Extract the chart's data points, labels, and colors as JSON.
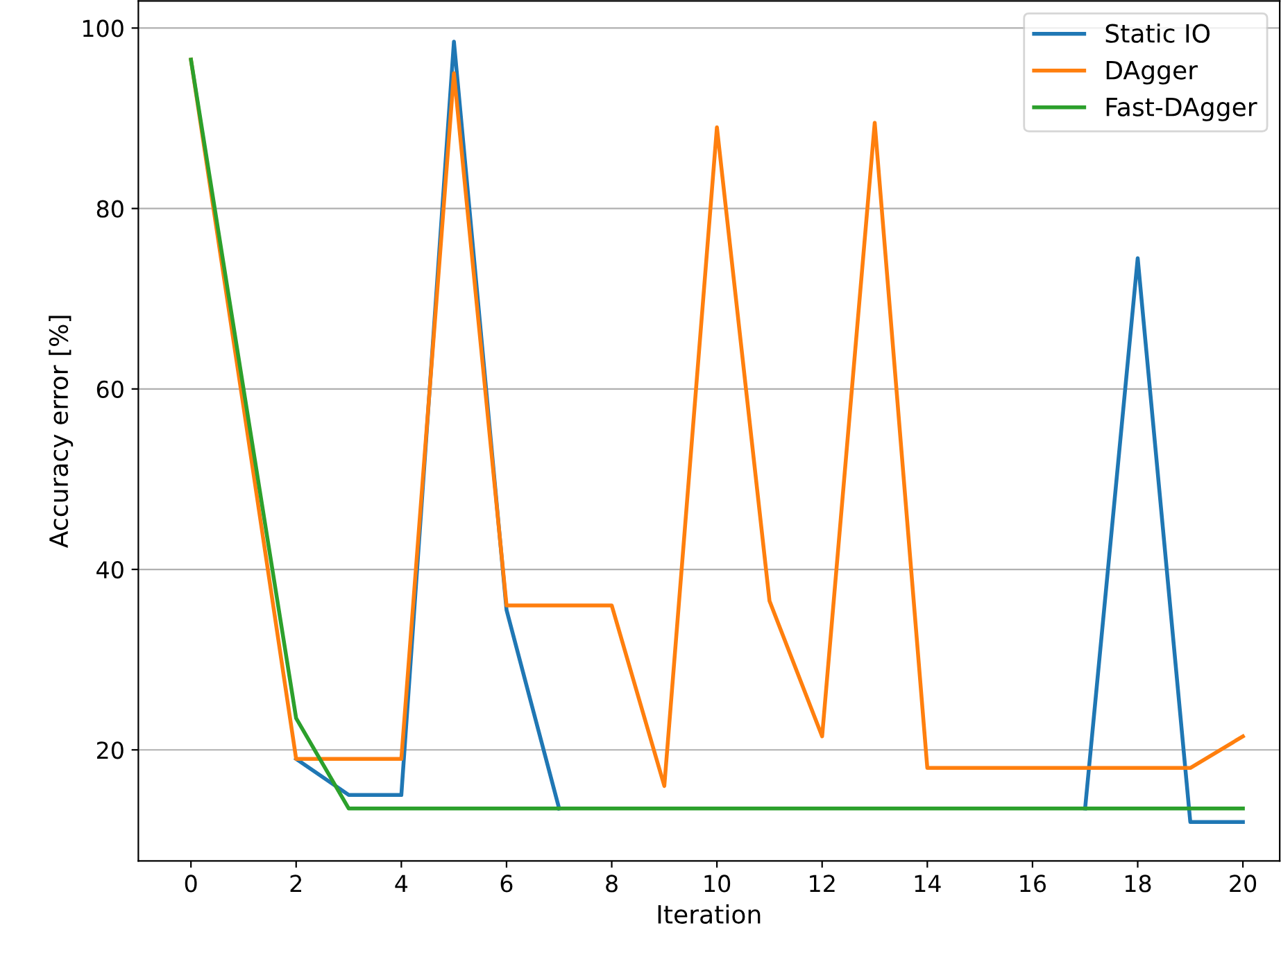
{
  "chart_data": {
    "type": "line",
    "xlabel": "Iteration",
    "ylabel": "Accuracy error [%]",
    "x": [
      0,
      1,
      2,
      3,
      4,
      5,
      6,
      7,
      8,
      9,
      10,
      11,
      12,
      13,
      14,
      15,
      16,
      17,
      18,
      19,
      20
    ],
    "series": [
      {
        "name": "Static IO",
        "color": "#1f77b4",
        "values": [
          null,
          null,
          19,
          15,
          15,
          98.5,
          35.5,
          13.5,
          null,
          null,
          null,
          null,
          null,
          null,
          null,
          null,
          null,
          13.5,
          74.5,
          12,
          12
        ]
      },
      {
        "name": "DAgger",
        "color": "#ff7f0e",
        "values": [
          96.5,
          58,
          19,
          19,
          19,
          95,
          36,
          36,
          36,
          16,
          89,
          36.5,
          21.5,
          89.5,
          18,
          18,
          18,
          18,
          18,
          18,
          21.5
        ]
      },
      {
        "name": "Fast-DAgger",
        "color": "#2ca02c",
        "values": [
          96.5,
          60,
          23.5,
          13.5,
          13.5,
          13.5,
          13.5,
          13.5,
          13.5,
          13.5,
          13.5,
          13.5,
          13.5,
          13.5,
          13.5,
          13.5,
          13.5,
          13.5,
          13.5,
          13.5,
          13.5
        ]
      }
    ],
    "xlim": [
      -1.0,
      20.7
    ],
    "ylim": [
      7.7,
      103
    ],
    "xticks": [
      0,
      2,
      4,
      6,
      8,
      10,
      12,
      14,
      16,
      18,
      20
    ],
    "yticks": [
      20,
      40,
      60,
      80,
      100
    ],
    "grid": "y",
    "legend": "top right",
    "marker": "none",
    "line_style": "solid"
  }
}
